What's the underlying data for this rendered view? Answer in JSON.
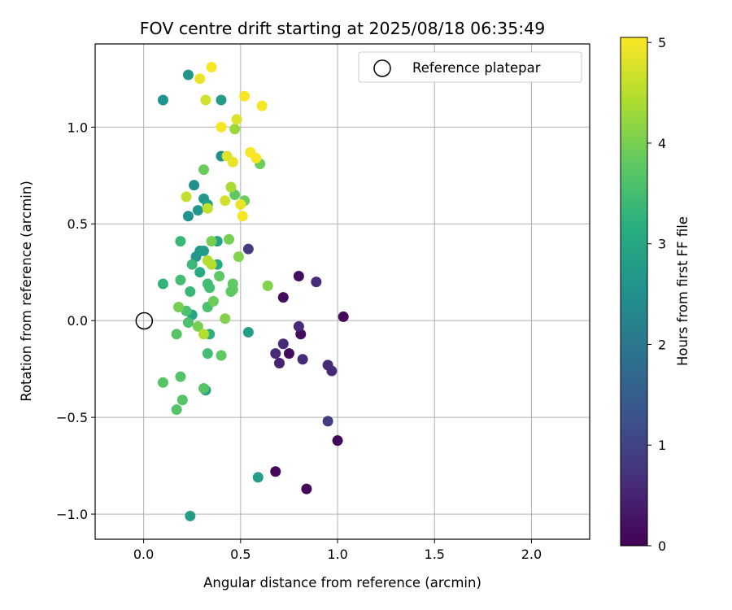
{
  "chart_data": {
    "type": "scatter",
    "title": "FOV centre drift starting at 2025/08/18 06:35:49",
    "xlabel": "Angular distance from reference (arcmin)",
    "ylabel": "Rotation from reference (arcmin)",
    "xlim": [
      -0.25,
      2.3
    ],
    "ylim": [
      -1.13,
      1.43
    ],
    "xticks": [
      0.0,
      0.5,
      1.0,
      1.5,
      2.0
    ],
    "xtick_labels": [
      "0.0",
      "0.5",
      "1.0",
      "1.5",
      "2.0"
    ],
    "yticks": [
      -1.0,
      -0.5,
      0.0,
      0.5,
      1.0
    ],
    "ytick_labels": [
      "−1.0",
      "−0.5",
      "0.0",
      "0.5",
      "1.0"
    ],
    "grid": true,
    "legend": {
      "position": "top-right",
      "entries": [
        {
          "label": "Reference platepar",
          "marker": "open-circle"
        }
      ]
    },
    "reference_point": {
      "x": 0.0,
      "y": 0.0
    },
    "colorbar": {
      "label": "Hours from first FF file",
      "range": [
        0,
        5.05
      ],
      "ticks": [
        0,
        1,
        2,
        3,
        4,
        5
      ],
      "tick_labels": [
        "0",
        "1",
        "2",
        "3",
        "4",
        "5"
      ],
      "colormap": "viridis"
    },
    "points": [
      {
        "x": 1.03,
        "y": 0.02,
        "c": 0.1
      },
      {
        "x": 0.84,
        "y": -0.87,
        "c": 0.1
      },
      {
        "x": 1.0,
        "y": -0.62,
        "c": 0.1
      },
      {
        "x": 0.68,
        "y": -0.78,
        "c": 0.1
      },
      {
        "x": 0.72,
        "y": 0.12,
        "c": 0.15
      },
      {
        "x": 0.75,
        "y": -0.17,
        "c": 0.15
      },
      {
        "x": 0.8,
        "y": 0.23,
        "c": 0.2
      },
      {
        "x": 0.81,
        "y": -0.07,
        "c": 0.2
      },
      {
        "x": 0.7,
        "y": -0.22,
        "c": 0.5
      },
      {
        "x": 0.68,
        "y": -0.17,
        "c": 0.6
      },
      {
        "x": 0.72,
        "y": -0.12,
        "c": 0.6
      },
      {
        "x": 0.8,
        "y": -0.03,
        "c": 0.6
      },
      {
        "x": 0.82,
        "y": -0.2,
        "c": 0.6
      },
      {
        "x": 0.89,
        "y": 0.2,
        "c": 0.6
      },
      {
        "x": 0.95,
        "y": -0.23,
        "c": 0.6
      },
      {
        "x": 0.97,
        "y": -0.26,
        "c": 0.6
      },
      {
        "x": 0.95,
        "y": -0.52,
        "c": 0.9
      },
      {
        "x": 0.54,
        "y": 0.37,
        "c": 0.9
      },
      {
        "x": 0.1,
        "y": 1.14,
        "c": 2.6
      },
      {
        "x": 0.23,
        "y": 1.27,
        "c": 2.7
      },
      {
        "x": 0.4,
        "y": 1.14,
        "c": 2.8
      },
      {
        "x": 0.4,
        "y": 0.85,
        "c": 2.5
      },
      {
        "x": 0.26,
        "y": 0.7,
        "c": 2.5
      },
      {
        "x": 0.23,
        "y": 0.54,
        "c": 2.6
      },
      {
        "x": 0.28,
        "y": 0.57,
        "c": 2.7
      },
      {
        "x": 0.31,
        "y": 0.63,
        "c": 2.7
      },
      {
        "x": 0.33,
        "y": 0.6,
        "c": 2.9
      },
      {
        "x": 0.27,
        "y": 0.33,
        "c": 2.7
      },
      {
        "x": 0.29,
        "y": 0.36,
        "c": 2.7
      },
      {
        "x": 0.31,
        "y": 0.36,
        "c": 2.8
      },
      {
        "x": 0.38,
        "y": 0.41,
        "c": 2.9
      },
      {
        "x": 0.54,
        "y": -0.06,
        "c": 2.8
      },
      {
        "x": 0.59,
        "y": -0.81,
        "c": 2.8
      },
      {
        "x": 0.24,
        "y": -1.01,
        "c": 2.8
      },
      {
        "x": 0.32,
        "y": -0.36,
        "c": 2.9
      },
      {
        "x": 0.25,
        "y": 0.03,
        "c": 3.0
      },
      {
        "x": 0.29,
        "y": 0.25,
        "c": 3.1
      },
      {
        "x": 0.38,
        "y": 0.29,
        "c": 3.1
      },
      {
        "x": 0.34,
        "y": -0.07,
        "c": 3.2
      },
      {
        "x": 0.1,
        "y": 0.19,
        "c": 3.3
      },
      {
        "x": 0.19,
        "y": 0.41,
        "c": 3.4
      },
      {
        "x": 0.25,
        "y": 0.29,
        "c": 3.4
      },
      {
        "x": 0.24,
        "y": 0.15,
        "c": 3.4
      },
      {
        "x": 0.19,
        "y": 0.21,
        "c": 3.5
      },
      {
        "x": 0.33,
        "y": 0.19,
        "c": 3.5
      },
      {
        "x": 0.34,
        "y": 0.17,
        "c": 3.5
      },
      {
        "x": 0.33,
        "y": -0.17,
        "c": 3.5
      },
      {
        "x": 0.22,
        "y": 0.05,
        "c": 3.6
      },
      {
        "x": 0.23,
        "y": -0.01,
        "c": 3.6
      },
      {
        "x": 0.33,
        "y": 0.07,
        "c": 3.6
      },
      {
        "x": 0.19,
        "y": -0.29,
        "c": 3.7
      },
      {
        "x": 0.2,
        "y": -0.41,
        "c": 3.7
      },
      {
        "x": 0.17,
        "y": -0.07,
        "c": 3.7
      },
      {
        "x": 0.1,
        "y": -0.32,
        "c": 3.7
      },
      {
        "x": 0.17,
        "y": -0.46,
        "c": 3.7
      },
      {
        "x": 0.31,
        "y": -0.35,
        "c": 3.7
      },
      {
        "x": 0.39,
        "y": 0.23,
        "c": 3.8
      },
      {
        "x": 0.4,
        "y": -0.18,
        "c": 3.8
      },
      {
        "x": 0.45,
        "y": 0.15,
        "c": 3.8
      },
      {
        "x": 0.46,
        "y": 0.19,
        "c": 3.8
      },
      {
        "x": 0.46,
        "y": 0.16,
        "c": 3.8
      },
      {
        "x": 0.47,
        "y": 0.65,
        "c": 3.8
      },
      {
        "x": 0.6,
        "y": 0.81,
        "c": 3.9
      },
      {
        "x": 0.52,
        "y": 0.62,
        "c": 3.9
      },
      {
        "x": 0.31,
        "y": 0.78,
        "c": 3.9
      },
      {
        "x": 0.36,
        "y": 0.1,
        "c": 3.9
      },
      {
        "x": 0.18,
        "y": 0.07,
        "c": 4.0
      },
      {
        "x": 0.28,
        "y": -0.03,
        "c": 4.0
      },
      {
        "x": 0.35,
        "y": 0.41,
        "c": 4.0
      },
      {
        "x": 0.44,
        "y": 0.42,
        "c": 4.0
      },
      {
        "x": 0.49,
        "y": 0.33,
        "c": 4.1
      },
      {
        "x": 0.64,
        "y": 0.18,
        "c": 4.1
      },
      {
        "x": 0.42,
        "y": 0.01,
        "c": 4.1
      },
      {
        "x": 0.47,
        "y": 0.99,
        "c": 4.3
      },
      {
        "x": 0.45,
        "y": 0.69,
        "c": 4.4
      },
      {
        "x": 0.31,
        "y": -0.07,
        "c": 4.5
      },
      {
        "x": 0.33,
        "y": 0.31,
        "c": 4.5
      },
      {
        "x": 0.35,
        "y": 0.29,
        "c": 4.5
      },
      {
        "x": 0.22,
        "y": 0.64,
        "c": 4.6
      },
      {
        "x": 0.33,
        "y": 0.58,
        "c": 4.6
      },
      {
        "x": 0.32,
        "y": 1.14,
        "c": 4.7
      },
      {
        "x": 0.42,
        "y": 0.62,
        "c": 4.7
      },
      {
        "x": 0.43,
        "y": 0.85,
        "c": 4.8
      },
      {
        "x": 0.48,
        "y": 1.04,
        "c": 4.8
      },
      {
        "x": 0.29,
        "y": 1.25,
        "c": 4.9
      },
      {
        "x": 0.46,
        "y": 0.82,
        "c": 4.9
      },
      {
        "x": 0.5,
        "y": 0.6,
        "c": 4.9
      },
      {
        "x": 0.35,
        "y": 1.31,
        "c": 5.0
      },
      {
        "x": 0.4,
        "y": 1.0,
        "c": 5.0
      },
      {
        "x": 0.52,
        "y": 1.16,
        "c": 5.0
      },
      {
        "x": 0.55,
        "y": 0.87,
        "c": 5.0
      },
      {
        "x": 0.58,
        "y": 0.84,
        "c": 5.0
      },
      {
        "x": 0.51,
        "y": 0.54,
        "c": 5.0
      },
      {
        "x": 0.61,
        "y": 1.11,
        "c": 5.0
      }
    ]
  }
}
